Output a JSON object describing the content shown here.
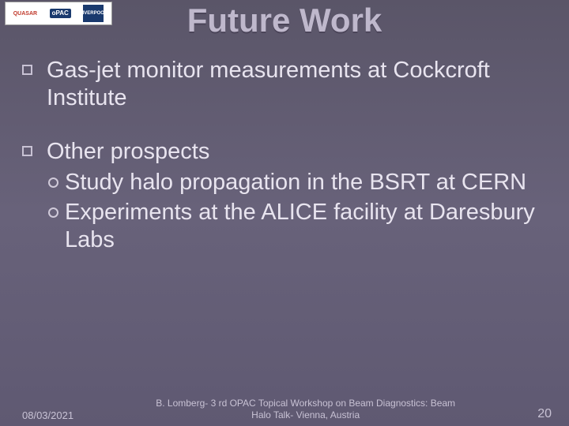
{
  "logos": {
    "quasar": "QUASAR",
    "opac": "oPAC",
    "liverpool": "LIVERPOOL"
  },
  "title": "Future Work",
  "bullets": [
    {
      "text": "Gas-jet monitor measurements at Cockcroft Institute",
      "subs": []
    },
    {
      "text": "Other prospects",
      "subs": [
        "Study halo propagation in the BSRT at CERN",
        "Experiments at the ALICE facility at Daresbury Labs"
      ]
    }
  ],
  "footer": {
    "date": "08/03/2021",
    "center_line1": "B. Lomberg- 3 rd OPAC Topical Workshop on Beam Diagnostics: Beam",
    "center_line2": "Halo Talk- Vienna, Austria",
    "page": "20"
  }
}
